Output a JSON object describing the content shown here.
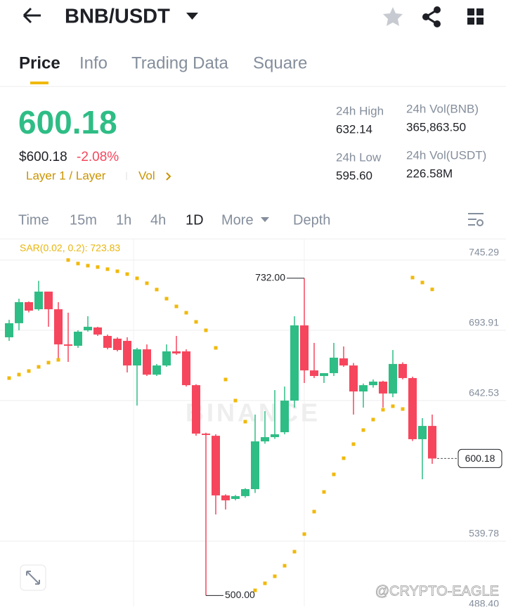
{
  "header": {
    "title": "BNB/USDT"
  },
  "tabs": [
    "Price",
    "Info",
    "Trading Data",
    "Square"
  ],
  "ticker": {
    "price": "600.18",
    "price_usd": "$600.18",
    "change": "-2.08%",
    "tags": [
      "Layer 1 / Layer",
      "Vol"
    ]
  },
  "stats": [
    {
      "label": "24h High",
      "value": "632.14"
    },
    {
      "label": "24h Low",
      "value": "595.60"
    },
    {
      "label": "24h Vol(BNB)",
      "value": "365,863.50"
    },
    {
      "label": "24h Vol(USDT)",
      "value": "226.58M"
    }
  ],
  "intervals": [
    "Time",
    "15m",
    "1h",
    "4h",
    "1D",
    "More",
    "Depth"
  ],
  "chart_data": {
    "type": "candlestick",
    "indicator_label": "SAR(0.02, 0.2): 723.83",
    "open": [
      688.8,
      699.1,
      714.5,
      709.3,
      722.2,
      709.3,
      683.6,
      682.6,
      693.9,
      696.0,
      689.8,
      687.8,
      686.2,
      668.2,
      680.0,
      661.5,
      668.2,
      678.5,
      678.5,
      653.8,
      618.4,
      616.8,
      573.2,
      570.6,
      572.7,
      577.8,
      612.7,
      615.8,
      619.4,
      642.5,
      697.5,
      664.6,
      660.5,
      662.6,
      673.4,
      668.2,
      649.2,
      653.8,
      656.4,
      647.7,
      669.3,
      659.0,
      614.3,
      624.0
    ],
    "high": [
      701.6,
      717.0,
      715.0,
      730.1,
      722.2,
      714.5,
      706.8,
      693.9,
      704.2,
      696.5,
      690.8,
      688.8,
      688.8,
      681.1,
      683.6,
      669.3,
      683.6,
      689.8,
      680.0,
      654.5,
      619.0,
      617.9,
      574.0,
      573.5,
      578.5,
      632.3,
      634.8,
      650.2,
      652.8,
      704.2,
      732.0,
      684.7,
      662.6,
      684.7,
      682.1,
      670.0,
      655.0,
      658.0,
      657.0,
      679.5,
      670.5,
      660.0,
      629.7,
      632.3
    ],
    "low": [
      686.2,
      693.9,
      707.0,
      708.3,
      696.5,
      673.4,
      670.8,
      681.1,
      692.9,
      689.8,
      680.0,
      678.5,
      663.1,
      638.9,
      660.5,
      660.5,
      667.2,
      676.0,
      652.8,
      616.8,
      500.0,
      559.3,
      562.9,
      569.6,
      571.5,
      575.0,
      611.0,
      614.5,
      617.9,
      637.4,
      655.4,
      659.0,
      655.4,
      660.5,
      667.2,
      632.3,
      637.4,
      652.0,
      637.4,
      645.0,
      658.0,
      613.0,
      585.0,
      596.3
    ],
    "close": [
      699.1,
      714.5,
      708.3,
      722.2,
      709.3,
      683.6,
      682.6,
      692.9,
      696.5,
      690.8,
      681.1,
      679.5,
      668.2,
      680.0,
      661.5,
      668.2,
      678.5,
      677.0,
      653.8,
      618.4,
      617.4,
      573.2,
      569.6,
      572.7,
      577.8,
      612.7,
      615.8,
      617.9,
      642.5,
      697.5,
      664.6,
      660.5,
      662.6,
      673.9,
      668.2,
      649.2,
      653.8,
      656.4,
      647.7,
      669.3,
      659.0,
      614.3,
      624.0,
      600.18
    ],
    "sar": [
      658.97,
      661.54,
      664.11,
      667.19,
      670.28,
      672.33,
      745.29,
      742.72,
      741.18,
      740.15,
      738.61,
      737.07,
      735.01,
      731.93,
      728.33,
      723.71,
      717.03,
      711.38,
      706.76,
      700.08,
      693.91,
      681.07,
      657.94,
      642.53,
      627.12,
      503.8,
      508.94,
      514.08,
      521.79,
      532.06,
      544.91,
      561.35,
      575.74,
      588.58,
      600.4,
      610.68,
      620.96,
      628.65,
      635.85,
      638.42,
      636.37,
      732.45,
      728.85,
      723.83
    ],
    "ylim": [
      488.4,
      745.29
    ],
    "yticks": [
      745.29,
      693.91,
      642.53,
      539.78,
      {
        "value": 488.4,
        "label": "488.40"
      }
    ],
    "annotations": [
      {
        "value": 732,
        "label": "732.00"
      },
      {
        "value": 500,
        "label": "500.00"
      }
    ],
    "last_price": {
      "value": 600.18,
      "label": "600.18"
    },
    "colors": {
      "up": "#2ebd85",
      "down": "#f6465d",
      "sar": "#f0b90b"
    },
    "grid": true
  },
  "watermarks": [
    "BINANCE",
    "@CRYPTO-EAGLE"
  ]
}
